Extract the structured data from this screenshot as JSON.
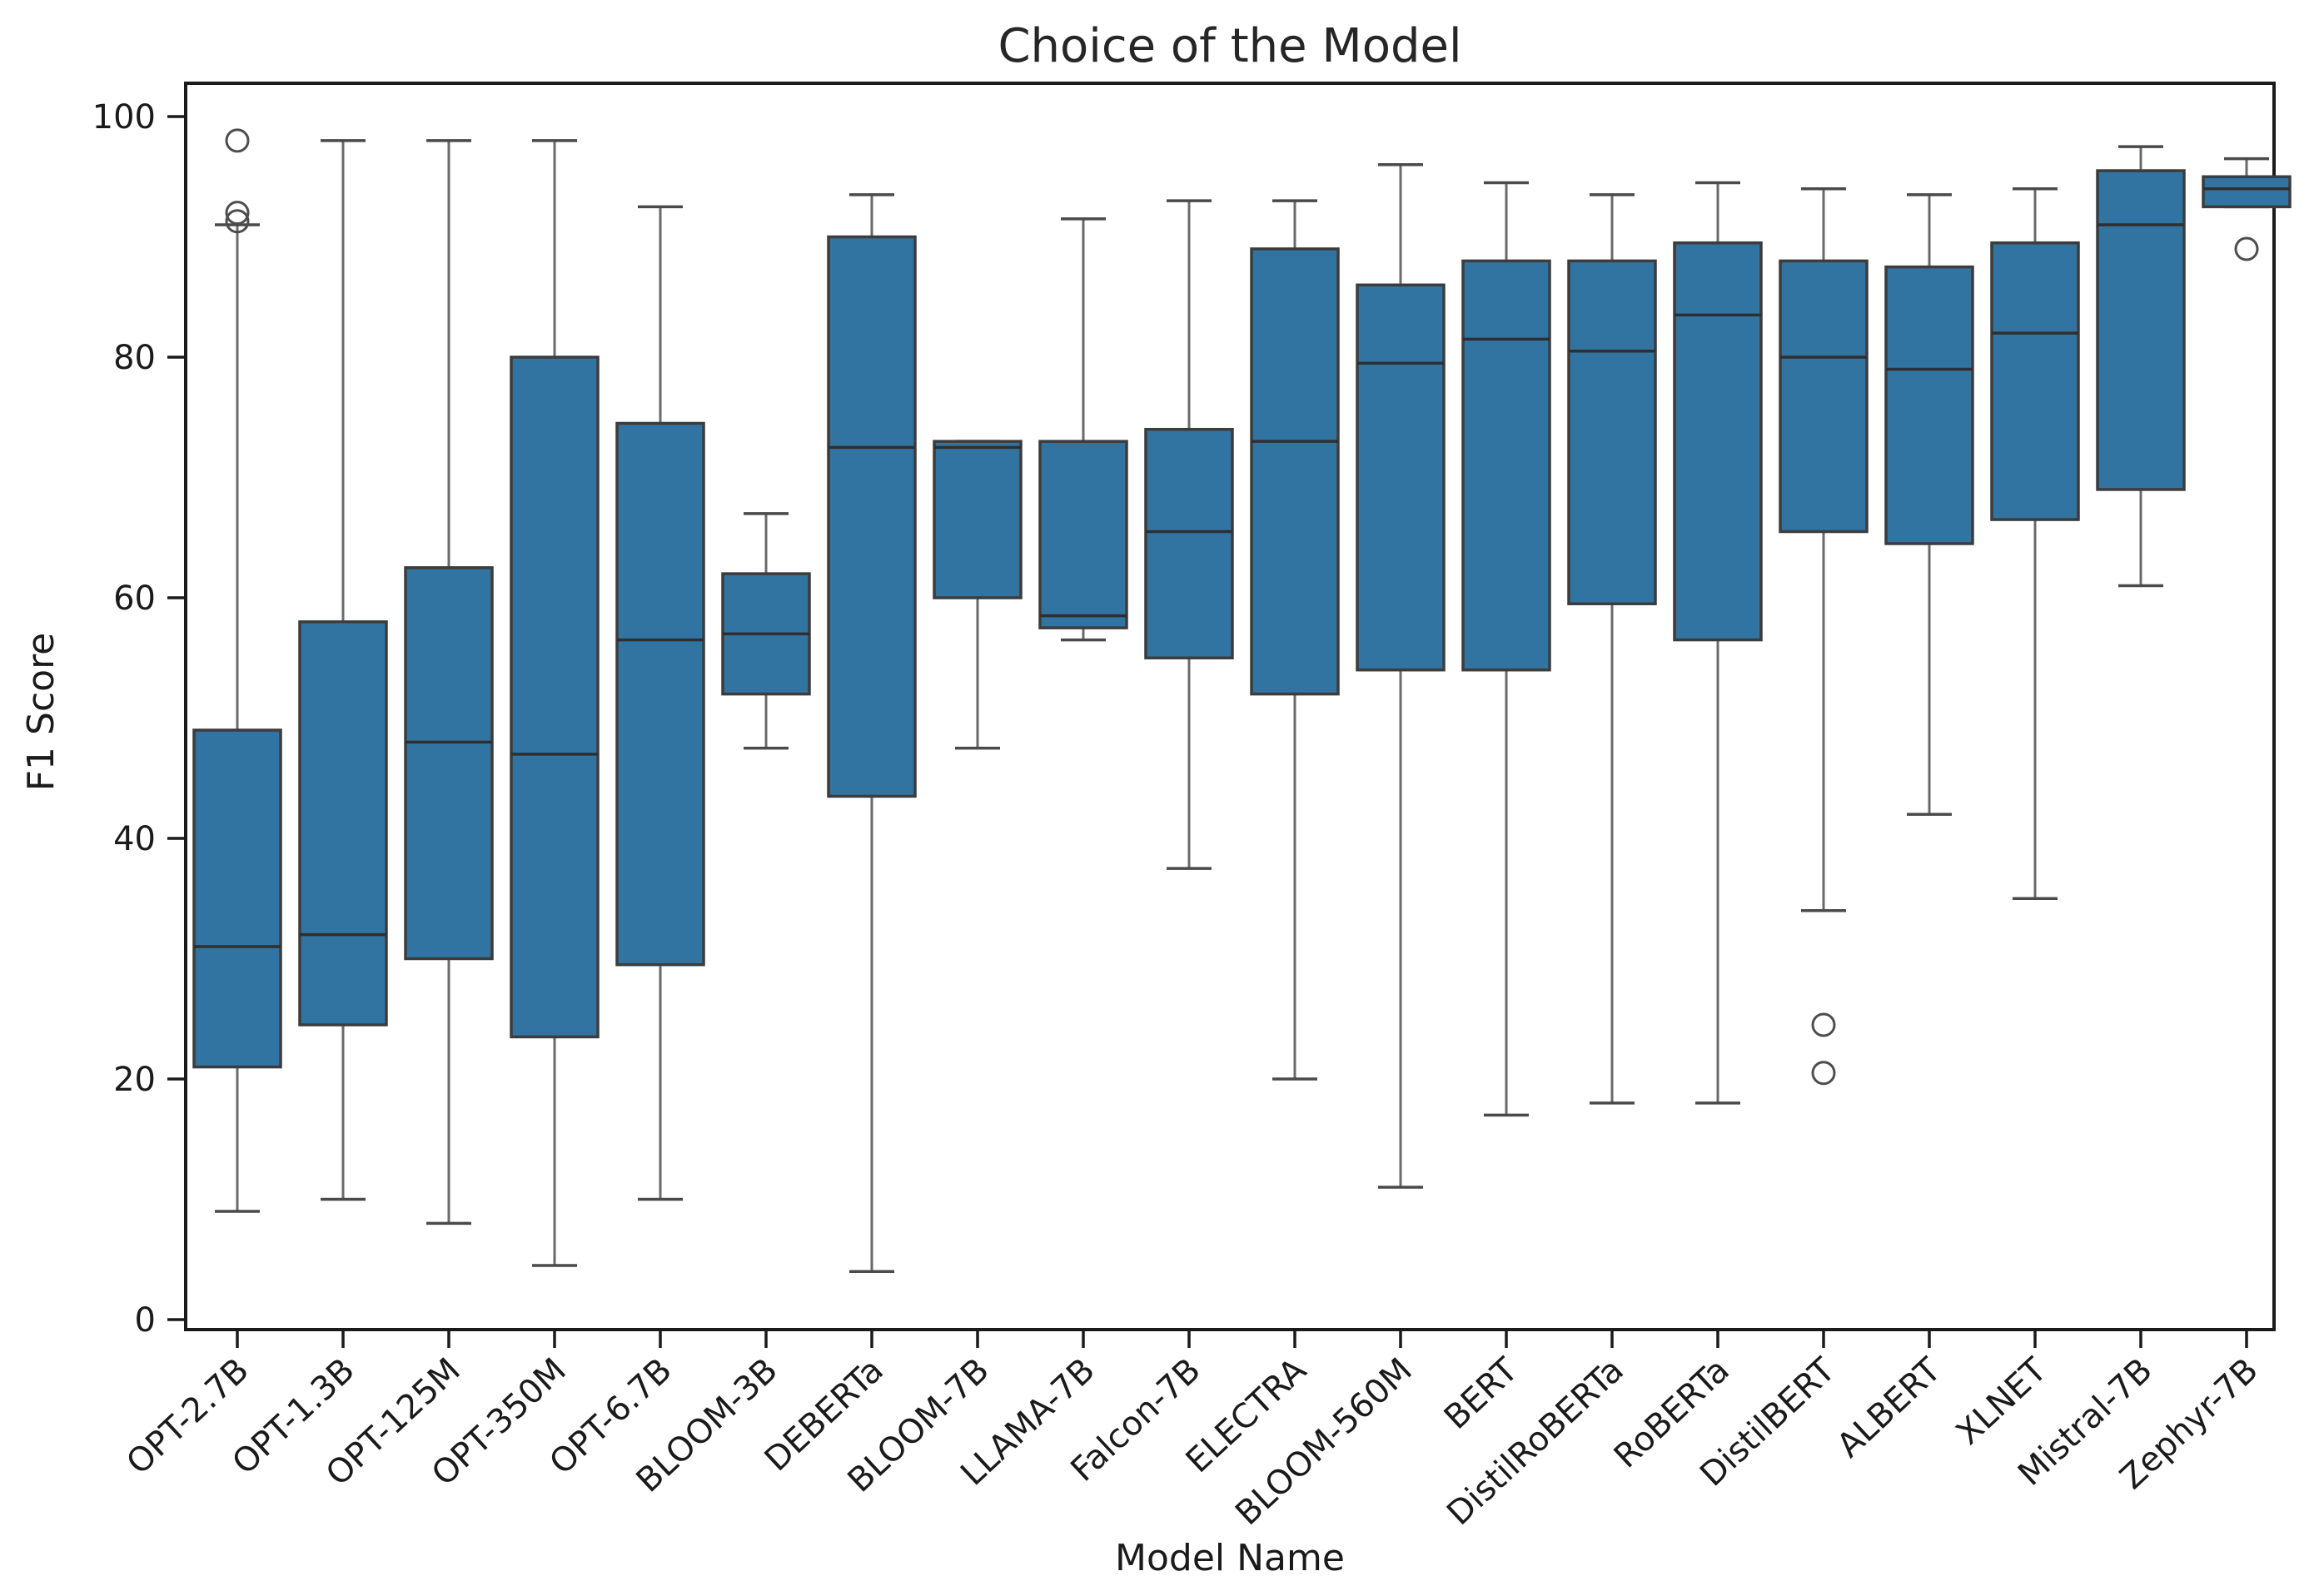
{
  "figure": {
    "background_color": "#ffffff"
  },
  "chart_data": {
    "type": "boxplot",
    "title": "Choice of the Model",
    "xlabel": "Model Name",
    "ylabel": "F1 Score",
    "ylim": [
      -1,
      103
    ],
    "yticks": [
      0,
      20,
      40,
      60,
      80,
      100
    ],
    "grid": false,
    "legend": "none",
    "box_fill_color": "#3274a1",
    "box_edge_color": "#3c3c3c",
    "median_color": "#2f2f2f",
    "whisker_color": "#6a6a6a",
    "cap_color": "#4a4a4a",
    "outlier_edge_color": "#4d4d4d",
    "spine_color": "#1a1a1a",
    "categories": [
      "OPT-2.7B",
      "OPT-1.3B",
      "OPT-125M",
      "OPT-350M",
      "OPT-6.7B",
      "BLOOM-3B",
      "DEBERTa",
      "BLOOM-7B",
      "LLAMA-7B",
      "Falcon-7B",
      "ELECTRA",
      "BLOOM-560M",
      "BERT",
      "DistilRoBERTa",
      "RoBERTa",
      "DistilBERT",
      "ALBERT",
      "XLNET",
      "Mistral-7B",
      "Zephyr-7B"
    ],
    "series": [
      {
        "name": "OPT-2.7B",
        "whislo": 9,
        "q1": 21,
        "med": 31,
        "q3": 49,
        "whishi": 91,
        "outliers": [
          98,
          92,
          91.3
        ]
      },
      {
        "name": "OPT-1.3B",
        "whislo": 10,
        "q1": 24.5,
        "med": 32,
        "q3": 58,
        "whishi": 98,
        "outliers": []
      },
      {
        "name": "OPT-125M",
        "whislo": 8,
        "q1": 30,
        "med": 48,
        "q3": 62.5,
        "whishi": 98,
        "outliers": []
      },
      {
        "name": "OPT-350M",
        "whislo": 4.5,
        "q1": 23.5,
        "med": 47,
        "q3": 80,
        "whishi": 98,
        "outliers": []
      },
      {
        "name": "OPT-6.7B",
        "whislo": 10,
        "q1": 29.5,
        "med": 56.5,
        "q3": 74.5,
        "whishi": 92.5,
        "outliers": []
      },
      {
        "name": "BLOOM-3B",
        "whislo": 47.5,
        "q1": 52,
        "med": 57,
        "q3": 62,
        "whishi": 67,
        "outliers": []
      },
      {
        "name": "DEBERTa",
        "whislo": 4,
        "q1": 43.5,
        "med": 72.5,
        "q3": 90,
        "whishi": 93.5,
        "outliers": []
      },
      {
        "name": "BLOOM-7B",
        "whislo": 47.5,
        "q1": 60,
        "med": 72.5,
        "q3": 73,
        "whishi": 73,
        "outliers": []
      },
      {
        "name": "LLAMA-7B",
        "whislo": 56.5,
        "q1": 57.5,
        "med": 58.5,
        "q3": 73,
        "whishi": 91.5,
        "outliers": []
      },
      {
        "name": "Falcon-7B",
        "whislo": 37.5,
        "q1": 55,
        "med": 65.5,
        "q3": 74,
        "whishi": 93,
        "outliers": []
      },
      {
        "name": "ELECTRA",
        "whislo": 20,
        "q1": 52,
        "med": 73,
        "q3": 89,
        "whishi": 93,
        "outliers": []
      },
      {
        "name": "BLOOM-560M",
        "whislo": 11,
        "q1": 54,
        "med": 79.5,
        "q3": 86,
        "whishi": 96,
        "outliers": []
      },
      {
        "name": "BERT",
        "whislo": 17,
        "q1": 54,
        "med": 81.5,
        "q3": 88,
        "whishi": 94.5,
        "outliers": []
      },
      {
        "name": "DistilRoBERTa",
        "whislo": 18,
        "q1": 59.5,
        "med": 80.5,
        "q3": 88,
        "whishi": 93.5,
        "outliers": []
      },
      {
        "name": "RoBERTa",
        "whislo": 18,
        "q1": 56.5,
        "med": 83.5,
        "q3": 89.5,
        "whishi": 94.5,
        "outliers": []
      },
      {
        "name": "DistilBERT",
        "whislo": 34,
        "q1": 65.5,
        "med": 80,
        "q3": 88,
        "whishi": 94,
        "outliers": [
          24.5,
          20.5
        ]
      },
      {
        "name": "ALBERT",
        "whislo": 42,
        "q1": 64.5,
        "med": 79,
        "q3": 87.5,
        "whishi": 93.5,
        "outliers": []
      },
      {
        "name": "XLNET",
        "whislo": 35,
        "q1": 66.5,
        "med": 82,
        "q3": 89.5,
        "whishi": 94,
        "outliers": []
      },
      {
        "name": "Mistral-7B",
        "whislo": 61,
        "q1": 69,
        "med": 91,
        "q3": 95.5,
        "whishi": 97.5,
        "outliers": []
      },
      {
        "name": "Zephyr-7B",
        "whislo": 92.5,
        "q1": 92.5,
        "med": 94,
        "q3": 95,
        "whishi": 96.5,
        "outliers": [
          89
        ]
      }
    ]
  }
}
